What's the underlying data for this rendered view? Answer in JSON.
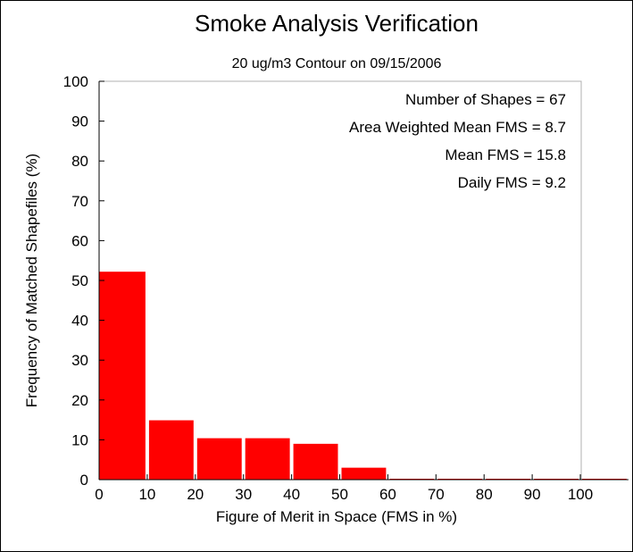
{
  "chart_data": {
    "type": "bar",
    "title": "Smoke Analysis Verification",
    "subtitle": "20 ug/m3 Contour on 09/15/2006",
    "xlabel": "Figure of Merit in Space (FMS in %)",
    "ylabel": "Frequency of Matched Shapefiles (%)",
    "xlim": [
      0,
      110
    ],
    "ylim": [
      0,
      100
    ],
    "x_ticks": [
      "0",
      "10",
      "20",
      "30",
      "40",
      "50",
      "60",
      "70",
      "80",
      "90",
      "100"
    ],
    "y_ticks": [
      "0",
      "10",
      "20",
      "30",
      "40",
      "50",
      "60",
      "70",
      "80",
      "90",
      "100"
    ],
    "bins": [
      {
        "start": 0,
        "end": 10,
        "value": 52.2
      },
      {
        "start": 10,
        "end": 20,
        "value": 14.9
      },
      {
        "start": 20,
        "end": 30,
        "value": 10.4
      },
      {
        "start": 30,
        "end": 40,
        "value": 10.4
      },
      {
        "start": 40,
        "end": 50,
        "value": 9.0
      },
      {
        "start": 50,
        "end": 60,
        "value": 3.0
      },
      {
        "start": 60,
        "end": 70,
        "value": 0
      },
      {
        "start": 70,
        "end": 80,
        "value": 0
      },
      {
        "start": 80,
        "end": 90,
        "value": 0
      },
      {
        "start": 90,
        "end": 100,
        "value": 0
      },
      {
        "start": 100,
        "end": 110,
        "value": 0
      }
    ],
    "bar_color": "#ff0000",
    "grid": false,
    "annotations": [
      "Number of Shapes = 67",
      "Area Weighted Mean FMS = 8.7",
      "Mean FMS = 15.8",
      "Daily FMS = 9.2"
    ],
    "annotation_placement": "top-right"
  }
}
